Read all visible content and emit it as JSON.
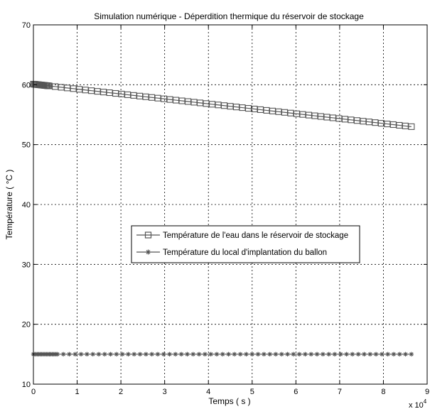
{
  "chart_data": {
    "type": "line",
    "title": "Simulation numérique - Déperdition thermique du réservoir de stockage",
    "xlabel": "Temps ( s )",
    "ylabel": "Température ( °C )",
    "x_exponent_label": "x 10",
    "x_exponent_power": "4",
    "x_scale": 10000,
    "xlim": [
      0,
      90000
    ],
    "ylim": [
      10,
      70
    ],
    "xticks": [
      0,
      10000,
      20000,
      30000,
      40000,
      50000,
      60000,
      70000,
      80000,
      90000
    ],
    "xtick_labels": [
      "0",
      "1",
      "2",
      "3",
      "4",
      "5",
      "6",
      "7",
      "8",
      "9"
    ],
    "yticks": [
      10,
      20,
      30,
      40,
      50,
      60,
      70
    ],
    "ytick_labels": [
      "10",
      "20",
      "30",
      "40",
      "50",
      "60",
      "70"
    ],
    "grid": true,
    "legend_position": "center",
    "series": [
      {
        "name": "Température de l'eau dans le réservoir de stockage",
        "marker": "square",
        "color": "#555555",
        "x_start": 0,
        "x_end": 86400,
        "y_start": 60.1,
        "y_end": 53.0,
        "dense_points": 18,
        "dense_end": 3600,
        "sparse_points": 60
      },
      {
        "name": "Température du local d'implantation du ballon",
        "marker": "star",
        "color": "#555555",
        "x_start": 0,
        "x_end": 86400,
        "y_start": 15.0,
        "y_end": 15.0,
        "dense_points": 18,
        "dense_end": 5500,
        "sparse_points": 60
      }
    ]
  }
}
